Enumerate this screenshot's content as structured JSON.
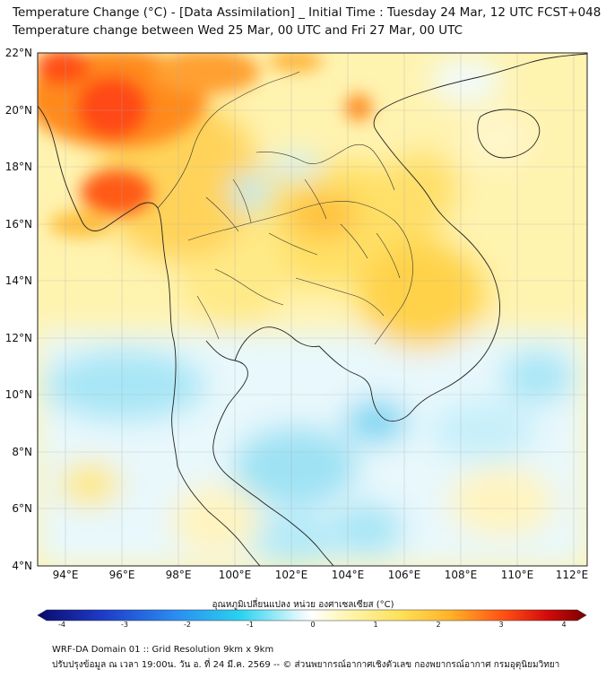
{
  "header": {
    "title_line1": "Temperature Change (°C) - [Data Assimilation] _ Initial Time : Tuesday 24 Mar, 12 UTC FCST+048",
    "title_line2": "Temperature change between Wed 25 Mar, 00 UTC and Fri 27 Mar, 00 UTC"
  },
  "axes": {
    "lat_labels": [
      "22°N",
      "20°N",
      "18°N",
      "16°N",
      "14°N",
      "12°N",
      "10°N",
      "8°N",
      "6°N",
      "4°N"
    ],
    "lon_labels": [
      "94°E",
      "96°E",
      "98°E",
      "100°E",
      "102°E",
      "104°E",
      "106°E",
      "108°E",
      "110°E",
      "112°E"
    ],
    "lat_range": [
      4,
      22
    ],
    "lon_range": [
      93,
      112.5
    ]
  },
  "colorbar": {
    "label": "อุณหภูมิเปลี่ยนแปลง หน่วย องศาเซลเซียส (°C)",
    "ticks": [
      "-4",
      "-3",
      "-2",
      "-1",
      "0",
      "1",
      "2",
      "3",
      "4"
    ],
    "range": [
      -4,
      4
    ],
    "colors": {
      "cold_extreme": "#0a0a6e",
      "cold": "#1e64dc",
      "cool": "#2ad2f0",
      "slightly_cool": "#b8f0fa",
      "neutral": "#ffffff",
      "slightly_warm": "#fff3a8",
      "warm": "#ffd23a",
      "hot": "#ff6a1a",
      "hot_extreme": "#7a0000"
    }
  },
  "footer": {
    "line1": "WRF-DA Domain 01 :: Grid Resolution 9km x 9km",
    "line2": "ปรับปรุงข้อมูล ณ เวลา 19:00น. วัน อ. ที่ 24 มี.ค. 2569 -- © ส่วนพยากรณ์อากาศเชิงตัวเลข กองพยากรณ์อากาศ กรมอุตุนิยมวิทยา"
  }
}
